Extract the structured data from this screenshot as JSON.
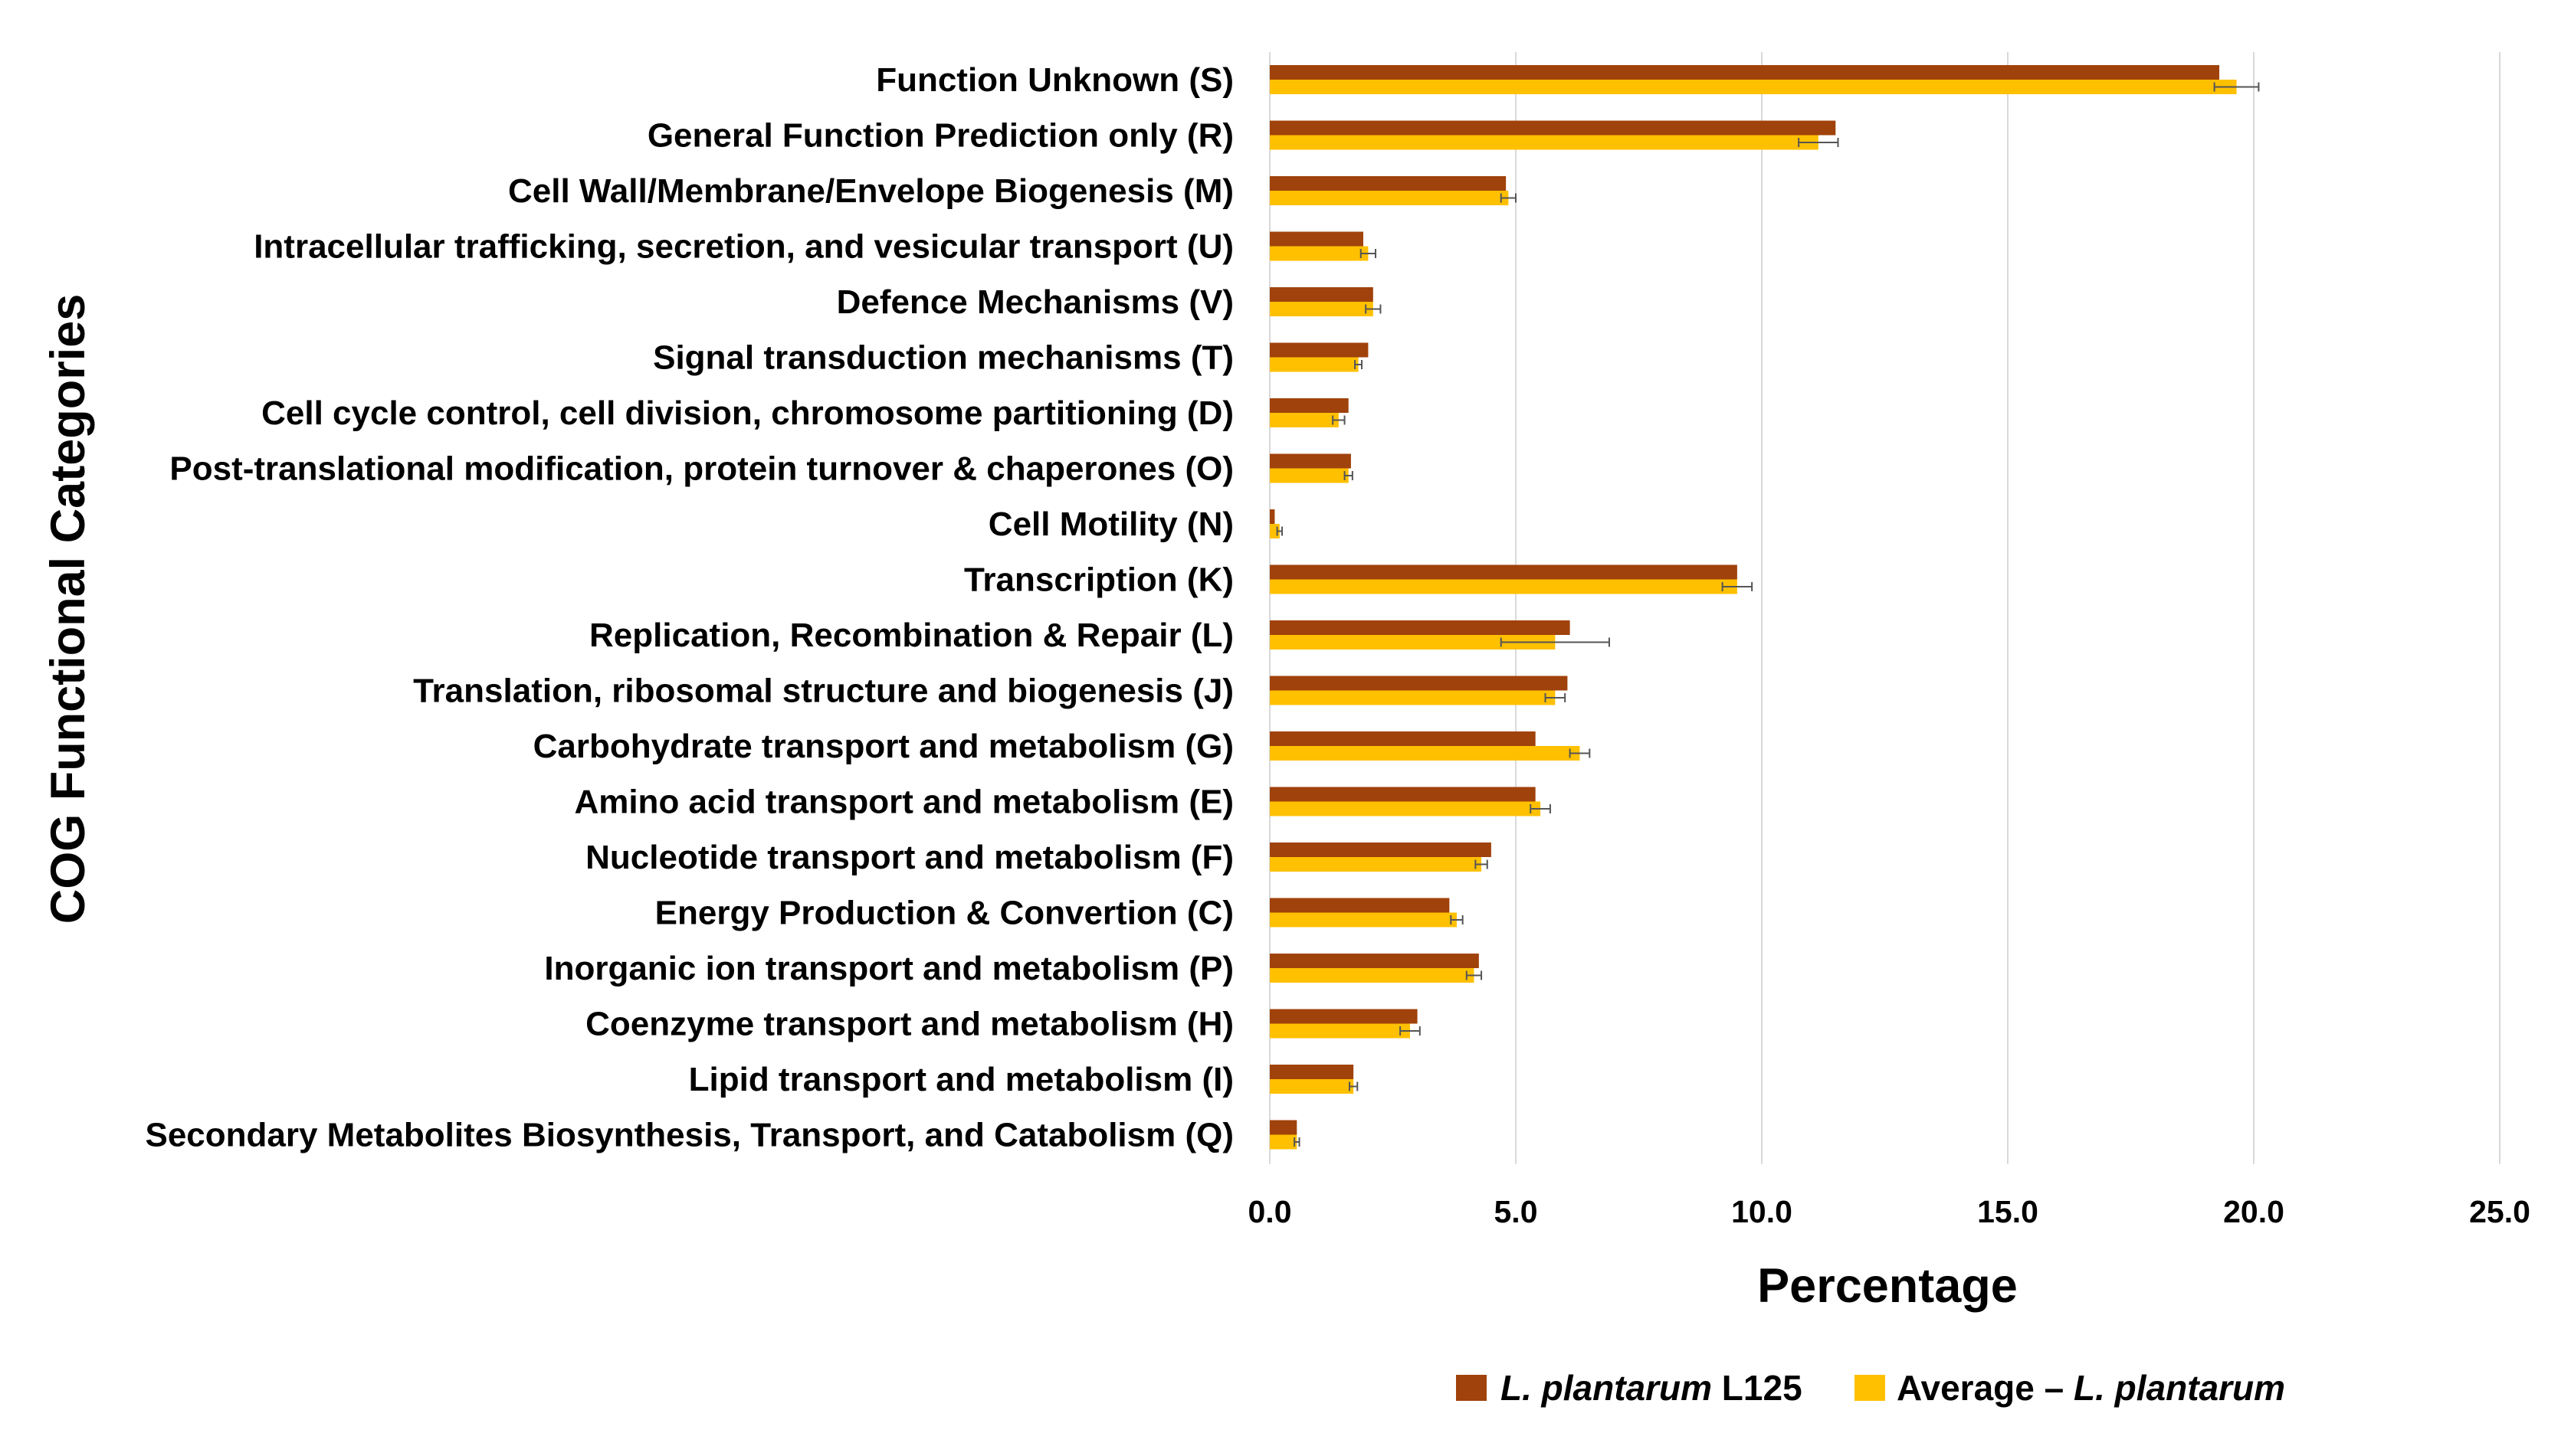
{
  "chart_data": {
    "type": "bar",
    "orientation": "horizontal",
    "title": "",
    "xlabel": "Percentage",
    "ylabel": "COG Functional Categories",
    "xlim": [
      0,
      25
    ],
    "xticks": [
      "0.0",
      "5.0",
      "10.0",
      "15.0",
      "20.0",
      "25.0"
    ],
    "xtick_values": [
      0,
      5,
      10,
      15,
      20,
      25
    ],
    "grid": true,
    "legend_position": "bottom",
    "categories": [
      "Function Unknown (S)",
      "General Function Prediction only (R)",
      "Cell Wall/Membrane/Envelope Biogenesis (M)",
      "Intracellular trafficking, secretion, and vesicular transport (U)",
      "Defence Mechanisms (V)",
      "Signal transduction mechanisms (T)",
      "Cell cycle control, cell division, chromosome partitioning (D)",
      "Post-translational modification, protein turnover & chaperones (O)",
      "Cell Motility (N)",
      "Transcription (K)",
      "Replication, Recombination & Repair (L)",
      "Translation, ribosomal structure and biogenesis (J)",
      "Carbohydrate transport and metabolism (G)",
      "Amino acid transport and metabolism (E)",
      "Nucleotide transport and metabolism (F)",
      "Energy Production & Convertion (C)",
      "Inorganic ion transport and metabolism (P)",
      "Coenzyme transport and metabolism (H)",
      "Lipid transport and metabolism (I)",
      "Secondary Metabolites Biosynthesis, Transport, and Catabolism (Q)"
    ],
    "series": [
      {
        "name_italic": "L. plantarum",
        "name_rest": " L125",
        "color": "#a0420b",
        "values": [
          19.3,
          11.5,
          4.8,
          1.9,
          2.1,
          2.0,
          1.6,
          1.65,
          0.1,
          9.5,
          6.1,
          6.05,
          5.4,
          5.4,
          4.5,
          3.65,
          4.25,
          3.0,
          1.7,
          0.55
        ],
        "errors": null
      },
      {
        "name_prefix": "Average – ",
        "name_italic": "L. plantarum",
        "color": "#ffc000",
        "values": [
          19.65,
          11.15,
          4.85,
          2.0,
          2.1,
          1.8,
          1.4,
          1.6,
          0.2,
          9.5,
          5.8,
          5.8,
          6.3,
          5.5,
          4.3,
          3.8,
          4.15,
          2.85,
          1.7,
          0.55
        ],
        "errors": [
          0.45,
          0.4,
          0.15,
          0.15,
          0.15,
          0.07,
          0.12,
          0.08,
          0.05,
          0.3,
          1.1,
          0.2,
          0.2,
          0.2,
          0.12,
          0.12,
          0.15,
          0.2,
          0.08,
          0.05
        ]
      }
    ]
  }
}
